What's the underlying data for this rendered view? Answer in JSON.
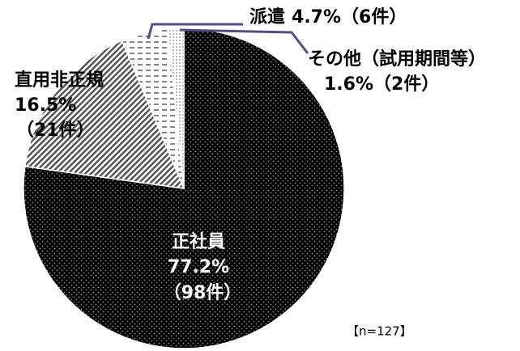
{
  "chart_data": {
    "type": "pie",
    "categories": [
      "正社員",
      "直用非正規",
      "派遣",
      "その他（試用期間等）"
    ],
    "values": [
      77.2,
      16.5,
      4.7,
      1.6
    ],
    "value_labels": [
      "77.2%",
      "16.5%",
      "4.7%",
      "1.6%"
    ],
    "count_labels": [
      "（98件）",
      "（21件）",
      "（6件）",
      "（2件）"
    ],
    "colors": [
      "#000000",
      "#bfbfbf",
      "#ffffff",
      "#ffffff"
    ],
    "note": "【n=127】"
  }
}
